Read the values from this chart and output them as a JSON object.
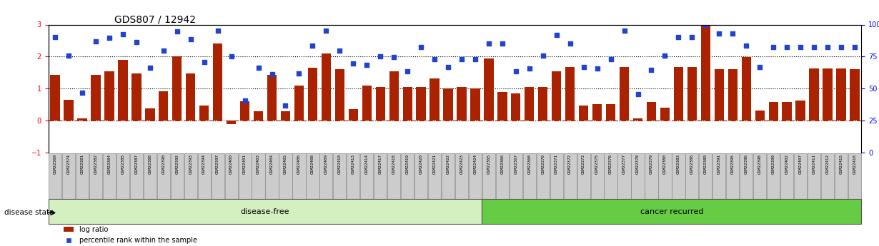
{
  "title": "GDS807 / 12942",
  "samples": [
    "GSM22369",
    "GSM22374",
    "GSM22381",
    "GSM22382",
    "GSM22384",
    "GSM22385",
    "GSM22387",
    "GSM22388",
    "GSM22390",
    "GSM22392",
    "GSM22393",
    "GSM22394",
    "GSM22397",
    "GSM22400",
    "GSM22401",
    "GSM22403",
    "GSM22404",
    "GSM22405",
    "GSM22406",
    "GSM22408",
    "GSM22409",
    "GSM22410",
    "GSM22413",
    "GSM22414",
    "GSM22417",
    "GSM22418",
    "GSM22419",
    "GSM22420",
    "GSM22421",
    "GSM22422",
    "GSM22423",
    "GSM22424",
    "GSM22365",
    "GSM22366",
    "GSM22367",
    "GSM22368",
    "GSM22370",
    "GSM22371",
    "GSM22372",
    "GSM22373",
    "GSM22375",
    "GSM22376",
    "GSM22377",
    "GSM22378",
    "GSM22379",
    "GSM22380",
    "GSM22383",
    "GSM22386",
    "GSM22389",
    "GSM22391",
    "GSM22395",
    "GSM22396",
    "GSM22398",
    "GSM22399",
    "GSM22402",
    "GSM22407",
    "GSM22411",
    "GSM22412",
    "GSM22415",
    "GSM22416"
  ],
  "log_ratio": [
    1.42,
    0.65,
    0.07,
    1.42,
    1.55,
    1.9,
    1.47,
    0.37,
    0.92,
    2.0,
    1.48,
    0.48,
    2.42,
    -0.1,
    0.6,
    0.3,
    1.42,
    0.3,
    1.1,
    1.65,
    2.1,
    1.6,
    0.35,
    1.1,
    1.05,
    1.55,
    1.05,
    1.05,
    1.32,
    1.0,
    1.05,
    1.0,
    1.95,
    0.9,
    0.85,
    1.05,
    1.05,
    1.55,
    1.68,
    0.48,
    0.52,
    0.52,
    1.68,
    0.07,
    0.57,
    0.4,
    1.67,
    1.67,
    3.5,
    1.6,
    1.6,
    1.98,
    0.32,
    0.57,
    0.58,
    0.62,
    1.62,
    1.62,
    1.62,
    1.6
  ],
  "percentile": [
    2.6,
    2.02,
    0.88,
    2.48,
    2.58,
    2.7,
    2.45,
    1.65,
    2.18,
    2.78,
    2.55,
    1.84,
    2.8,
    2.0,
    0.62,
    1.65,
    1.45,
    0.48,
    1.48,
    2.35,
    2.82,
    2.18,
    1.78,
    1.75,
    2.0,
    1.98,
    1.55,
    2.3,
    1.92,
    1.68,
    1.92,
    1.92,
    2.4,
    2.42,
    1.55,
    1.62,
    2.02,
    2.68,
    2.4,
    1.68,
    1.62,
    1.92,
    2.8,
    0.82,
    1.58,
    2.02,
    2.6,
    2.6,
    3.0,
    2.72,
    2.72,
    2.35,
    1.68,
    2.3,
    2.3,
    2.3,
    2.3,
    2.3,
    2.3,
    2.3
  ],
  "disease_free_count": 32,
  "cancer_recurred_count": 28,
  "bar_color": "#aa2200",
  "scatter_color": "#2244cc",
  "left_ylim": [
    -1,
    3
  ],
  "right_ylim": [
    0,
    100
  ],
  "left_yticks": [
    -1,
    0,
    1,
    2,
    3
  ],
  "right_yticks": [
    0,
    25,
    50,
    75,
    100
  ],
  "disease_free_bg": "#d4f0c0",
  "cancer_recurred_bg": "#66cc44",
  "label_bg": "#cccccc"
}
